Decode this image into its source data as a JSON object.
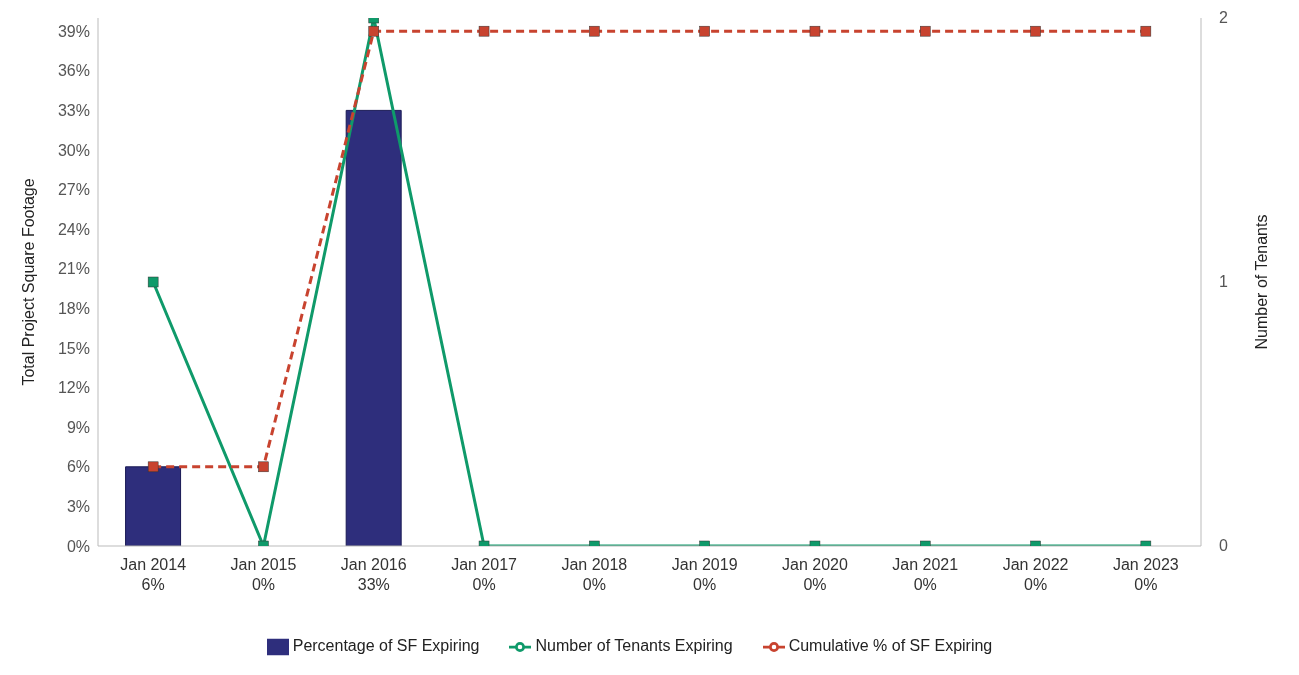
{
  "chart_data": {
    "type": "bar",
    "categories": [
      "Jan 2014",
      "Jan 2015",
      "Jan 2016",
      "Jan 2017",
      "Jan 2018",
      "Jan 2019",
      "Jan 2020",
      "Jan 2021",
      "Jan 2022",
      "Jan 2023"
    ],
    "ylabel": "Total Project Square Footage",
    "y2label": "Number of Tenants",
    "ylim": [
      0,
      40
    ],
    "yticks": [
      {
        "value": 0,
        "label": "0%"
      },
      {
        "value": 3,
        "label": "3%"
      },
      {
        "value": 6,
        "label": "6%"
      },
      {
        "value": 9,
        "label": "9%"
      },
      {
        "value": 12,
        "label": "12%"
      },
      {
        "value": 15,
        "label": "15%"
      },
      {
        "value": 18,
        "label": "18%"
      },
      {
        "value": 21,
        "label": "21%"
      },
      {
        "value": 24,
        "label": "24%"
      },
      {
        "value": 27,
        "label": "27%"
      },
      {
        "value": 30,
        "label": "30%"
      },
      {
        "value": 33,
        "label": "33%"
      },
      {
        "value": 36,
        "label": "36%"
      },
      {
        "value": 39,
        "label": "39%"
      }
    ],
    "y2lim": [
      0,
      2
    ],
    "y2ticks": [
      0,
      1,
      2
    ],
    "series": [
      {
        "name": "Percentage of SF Expiring",
        "color": "#2e2e7c",
        "values": [
          6,
          0,
          33,
          0,
          0,
          0,
          0,
          0,
          0,
          0
        ],
        "value_labels": [
          "6%",
          "0%",
          "33%",
          "0%",
          "0%",
          "0%",
          "0%",
          "0%",
          "0%",
          "0%"
        ]
      },
      {
        "name": "Number of Tenants Expiring",
        "type": "line",
        "axis": "y2",
        "color": "#0f9a6a",
        "line_style": "solid",
        "values": [
          1,
          0,
          2,
          0,
          0,
          0,
          0,
          0,
          0,
          0
        ]
      },
      {
        "name": "Cumulative % of SF Expiring",
        "type": "line",
        "color": "#c8432f",
        "line_style": "dashed",
        "values": [
          6,
          6,
          39,
          39,
          39,
          39,
          39,
          39,
          39,
          39
        ]
      }
    ],
    "marker": "square",
    "legend": "bottom",
    "grid": false
  }
}
